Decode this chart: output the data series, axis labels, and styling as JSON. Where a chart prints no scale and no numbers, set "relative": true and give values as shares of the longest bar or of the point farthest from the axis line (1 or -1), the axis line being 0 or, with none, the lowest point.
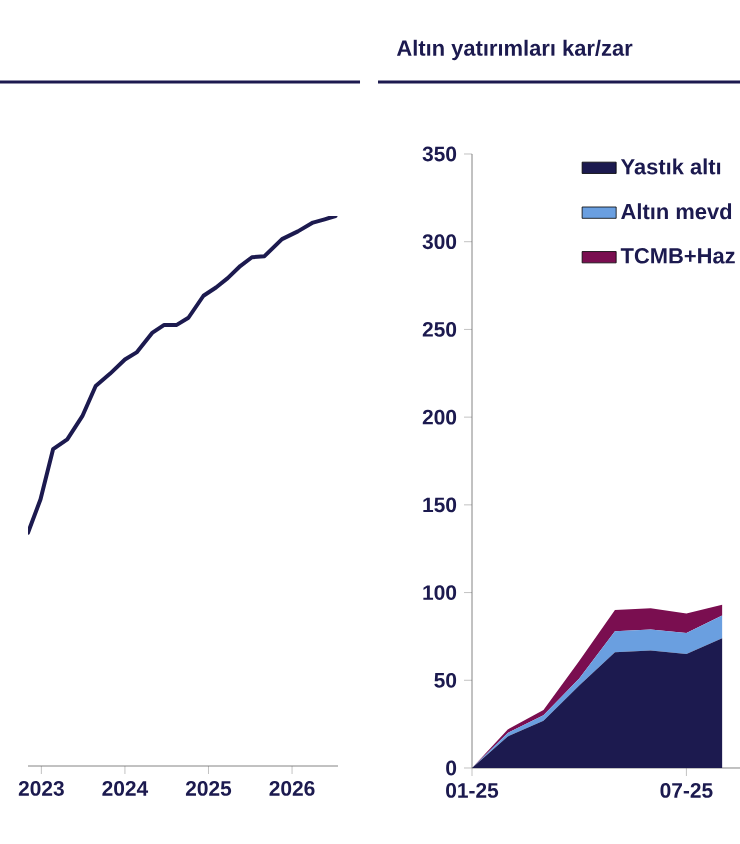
{
  "chart_data": [
    {
      "type": "line",
      "relative": true,
      "x": [
        2022.84,
        2022.99,
        2023.14,
        2023.31,
        2023.49,
        2023.65,
        2023.82,
        2024.0,
        2024.14,
        2024.33,
        2024.47,
        2024.62,
        2024.76,
        2024.94,
        2025.09,
        2025.23,
        2025.38,
        2025.52,
        2025.67,
        2025.88,
        2026.07,
        2026.25,
        2026.39,
        2026.52
      ],
      "xlim": [
        2022.84,
        2026.55
      ],
      "xticks": [
        2023,
        2024,
        2025,
        2026
      ],
      "series": [
        {
          "color": "#1c1a4f",
          "values": [
            0.424,
            0.485,
            0.576,
            0.594,
            0.636,
            0.691,
            0.713,
            0.739,
            0.752,
            0.788,
            0.802,
            0.802,
            0.815,
            0.855,
            0.87,
            0.887,
            0.909,
            0.925,
            0.927,
            0.958,
            0.972,
            0.988,
            0.994,
            1.0
          ]
        }
      ]
    },
    {
      "type": "area",
      "stacked": true,
      "title": "Altın yatırımları kar/zar",
      "categories": [
        "01-25",
        null,
        null,
        null,
        null,
        null,
        "07-25",
        null
      ],
      "ylim": [
        0,
        350
      ],
      "yticks": [
        0,
        50,
        100,
        150,
        200,
        250,
        300,
        350
      ],
      "legend": "top right",
      "series": [
        {
          "name": "Yastık altı",
          "color": "#1c1a4f",
          "values": [
            0,
            18,
            27,
            47,
            66,
            67,
            65,
            74
          ]
        },
        {
          "name": "Altın mevd",
          "color": "#6a9fe0",
          "values": [
            0,
            2,
            3,
            4,
            12,
            12,
            12,
            13
          ]
        },
        {
          "name": "TCMB+Haz",
          "color": "#7a0e50",
          "values": [
            0,
            2,
            3,
            10,
            12,
            12,
            11,
            6
          ]
        }
      ]
    }
  ]
}
